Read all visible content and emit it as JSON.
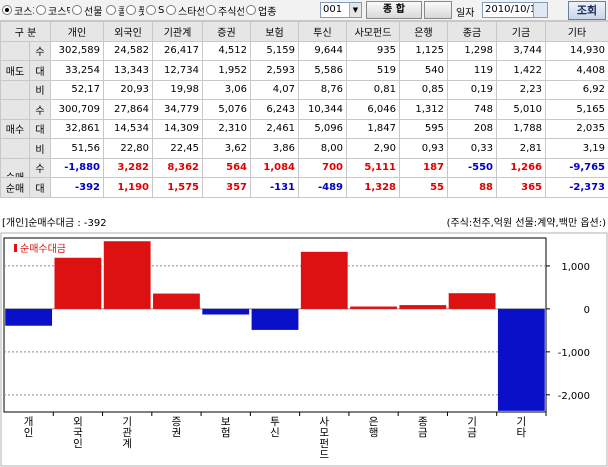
{
  "toolbar": {
    "market_options": [
      "코스피",
      "코스닥",
      "선물",
      "콜",
      "풋",
      "SF",
      "스타선",
      "주식선",
      "업종"
    ],
    "selected_market": "코스피",
    "code_value": "001",
    "type_label": "종   합",
    "type2_label": "",
    "date_label": "일자",
    "date_value": "2010/10/15",
    "search_label": "조회"
  },
  "table": {
    "header": [
      "구 분",
      "개인",
      "외국인",
      "기관계",
      "증권",
      "보험",
      "투신",
      "사모펀드",
      "은행",
      "종금",
      "기금",
      "기타"
    ],
    "groups": [
      {
        "label": "매도",
        "rows": [
          {
            "sub": "수",
            "values": [
              "302,589",
              "24,582",
              "26,417",
              "4,512",
              "5,159",
              "9,644",
              "935",
              "1,125",
              "1,298",
              "3,744",
              "14,930"
            ]
          },
          {
            "sub": "대",
            "values": [
              "33,254",
              "13,343",
              "12,734",
              "1,952",
              "2,593",
              "5,586",
              "519",
              "540",
              "119",
              "1,422",
              "4,408"
            ]
          },
          {
            "sub": "비",
            "values": [
              "52,17",
              "20,93",
              "19,98",
              "3,06",
              "4,07",
              "8,76",
              "0,81",
              "0,85",
              "0,19",
              "2,23",
              "6,92"
            ]
          }
        ]
      },
      {
        "label": "매수",
        "rows": [
          {
            "sub": "수",
            "values": [
              "300,709",
              "27,864",
              "34,779",
              "5,076",
              "6,243",
              "10,344",
              "6,046",
              "1,312",
              "748",
              "5,010",
              "5,165"
            ]
          },
          {
            "sub": "대",
            "values": [
              "32,861",
              "14,534",
              "14,309",
              "2,310",
              "2,461",
              "5,096",
              "1,847",
              "595",
              "208",
              "1,788",
              "2,035"
            ]
          },
          {
            "sub": "비",
            "values": [
              "51,56",
              "22,80",
              "22,45",
              "3,62",
              "3,86",
              "8,00",
              "2,90",
              "0,93",
              "0,33",
              "2,81",
              "3,19"
            ]
          }
        ]
      },
      {
        "label": "순매",
        "rows": [
          {
            "sub": "수",
            "values": [
              "-1,880",
              "3,282",
              "8,362",
              "564",
              "1,084",
              "700",
              "5,111",
              "187",
              "-550",
              "1,266",
              "-9,765"
            ]
          },
          {
            "sub": "대",
            "values": [
              "-392",
              "1,190",
              "1,575",
              "357",
              "-131",
              "-489",
              "1,328",
              "55",
              "88",
              "365",
              "-2,373"
            ]
          }
        ]
      }
    ]
  },
  "chart_header": {
    "left": "[개인]순매수대금 : -392",
    "right": "(주식:천주,억원 선물:계약,백만 옵션:)"
  },
  "chart_data": {
    "type": "bar",
    "legend": "순매수대금",
    "categories": [
      "개인",
      "외국인",
      "기관계",
      "증권",
      "보험",
      "투신",
      "사모펀드",
      "은행",
      "종금",
      "기금",
      "기타"
    ],
    "values": [
      -392,
      1190,
      1575,
      357,
      -131,
      -489,
      1328,
      55,
      88,
      365,
      -2373
    ],
    "ylim": [
      -2400,
      1650
    ],
    "yticks": [
      1000,
      0,
      -1000,
      -2000
    ],
    "ytick_labels": [
      "1,000",
      "0",
      "-1,000",
      "-2,000"
    ],
    "colors": {
      "positive": "#dd1111",
      "negative": "#0a10c8"
    }
  }
}
